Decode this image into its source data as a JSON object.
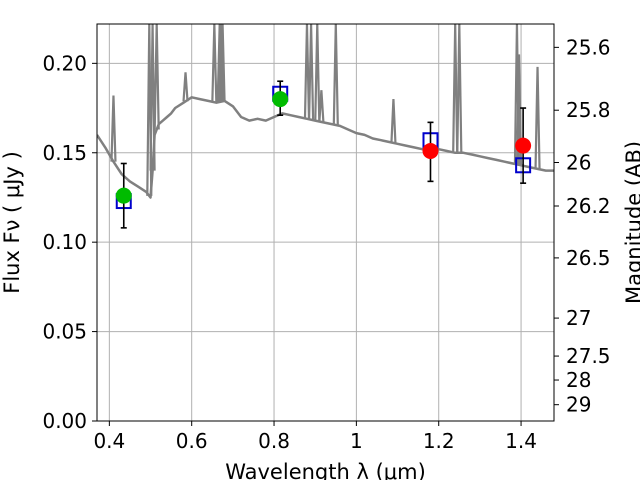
{
  "chart_data": {
    "type": "scatter",
    "xlabel": "Wavelength  λ (μm)",
    "ylabel": "Flux  Fν  ( μJy )",
    "y2label": "Magnitude (AB)",
    "xlim": [
      0.37,
      1.48
    ],
    "ylim": [
      0.0,
      0.222
    ],
    "x_ticks": [
      0.4,
      0.6,
      0.8,
      1.0,
      1.2,
      1.4
    ],
    "x_tick_labels": [
      "0.4",
      "0.6",
      "0.8",
      "1",
      "1.2",
      "1.4"
    ],
    "y_ticks": [
      0.0,
      0.05,
      0.1,
      0.15,
      0.2
    ],
    "y_tick_labels": [
      "0.00",
      "0.05",
      "0.10",
      "0.15",
      "0.20"
    ],
    "y2_ticks": [
      25.6,
      25.8,
      26.0,
      26.2,
      26.5,
      27.0,
      27.5,
      28.0,
      29.0
    ],
    "y2_tick_labels": [
      "25.6",
      "25.8",
      "26",
      "26.2",
      "26.5",
      "27",
      "27.5",
      "28",
      "29"
    ],
    "grid": true,
    "series": [
      {
        "kind": "line",
        "color": "#808080",
        "x": [
          0.37,
          0.39,
          0.41,
          0.43,
          0.45,
          0.47,
          0.49,
          0.5,
          0.505,
          0.51,
          0.52,
          0.53,
          0.54,
          0.55,
          0.56,
          0.58,
          0.6,
          0.62,
          0.64,
          0.66,
          0.68,
          0.7,
          0.72,
          0.74,
          0.76,
          0.78,
          0.8,
          0.82,
          0.84,
          0.86,
          0.88,
          0.9,
          0.92,
          0.94,
          0.96,
          0.98,
          1.0,
          1.02,
          1.04,
          1.06,
          1.08,
          1.1,
          1.12,
          1.14,
          1.16,
          1.18,
          1.2,
          1.22,
          1.24,
          1.26,
          1.28,
          1.3,
          1.32,
          1.34,
          1.36,
          1.38,
          1.4,
          1.42,
          1.44,
          1.46,
          1.48
        ],
        "y": [
          0.16,
          0.153,
          0.145,
          0.138,
          0.134,
          0.131,
          0.128,
          0.125,
          0.14,
          0.16,
          0.166,
          0.168,
          0.17,
          0.172,
          0.175,
          0.178,
          0.181,
          0.18,
          0.179,
          0.178,
          0.179,
          0.176,
          0.17,
          0.168,
          0.169,
          0.168,
          0.17,
          0.172,
          0.171,
          0.17,
          0.169,
          0.168,
          0.167,
          0.166,
          0.165,
          0.163,
          0.161,
          0.16,
          0.158,
          0.157,
          0.156,
          0.155,
          0.154,
          0.153,
          0.152,
          0.151,
          0.152,
          0.151,
          0.15,
          0.15,
          0.149,
          0.148,
          0.147,
          0.146,
          0.145,
          0.144,
          0.143,
          0.142,
          0.141,
          0.14,
          0.14
        ]
      },
      {
        "kind": "emission_lines",
        "color": "#808080",
        "lines": [
          {
            "x": 0.41,
            "y": 0.182
          },
          {
            "x": 0.497,
            "y": 0.222
          },
          {
            "x": 0.505,
            "y": 0.222
          },
          {
            "x": 0.515,
            "y": 0.222
          },
          {
            "x": 0.585,
            "y": 0.195
          },
          {
            "x": 0.655,
            "y": 0.222
          },
          {
            "x": 0.668,
            "y": 0.222
          },
          {
            "x": 0.67,
            "y": 0.222
          },
          {
            "x": 0.672,
            "y": 0.222
          },
          {
            "x": 0.675,
            "y": 0.222
          },
          {
            "x": 0.88,
            "y": 0.222
          },
          {
            "x": 0.89,
            "y": 0.222
          },
          {
            "x": 0.905,
            "y": 0.222
          },
          {
            "x": 0.915,
            "y": 0.185
          },
          {
            "x": 0.95,
            "y": 0.222
          },
          {
            "x": 1.09,
            "y": 0.18
          },
          {
            "x": 1.24,
            "y": 0.222
          },
          {
            "x": 1.25,
            "y": 0.222
          },
          {
            "x": 1.39,
            "y": 0.222
          },
          {
            "x": 1.395,
            "y": 0.205
          },
          {
            "x": 1.44,
            "y": 0.198
          }
        ]
      },
      {
        "kind": "model_points",
        "color": "#0000cc",
        "marker": "open-square",
        "points": [
          {
            "x": 0.435,
            "y": 0.123
          },
          {
            "x": 0.815,
            "y": 0.183
          },
          {
            "x": 1.18,
            "y": 0.157
          },
          {
            "x": 1.405,
            "y": 0.143
          }
        ]
      },
      {
        "kind": "observations",
        "color": "#000000",
        "marker": "filled-circle",
        "points": [
          {
            "x": 0.435,
            "y": 0.126,
            "yerr_low": 0.108,
            "yerr_high": 0.144,
            "color": "#00bb00"
          },
          {
            "x": 0.815,
            "y": 0.18,
            "yerr_low": 0.171,
            "yerr_high": 0.19,
            "color": "#00bb00"
          },
          {
            "x": 1.18,
            "y": 0.151,
            "yerr_low": 0.134,
            "yerr_high": 0.167,
            "color": "#ff0000"
          },
          {
            "x": 1.405,
            "y": 0.154,
            "yerr_low": 0.133,
            "yerr_high": 0.175,
            "color": "#ff0000"
          }
        ]
      }
    ]
  }
}
